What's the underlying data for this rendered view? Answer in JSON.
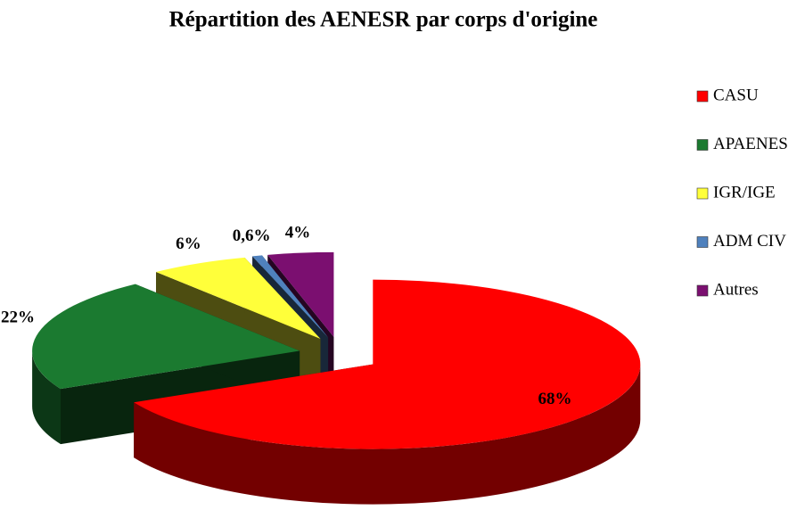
{
  "chart_data": {
    "type": "pie",
    "title": "Répartition des AENESR par corps d'origine",
    "categories": [
      "CASU",
      "APAENES",
      "IGR/IGE",
      "ADM CIV",
      "Autres"
    ],
    "values": [
      68,
      22,
      6,
      0.6,
      4
    ],
    "value_labels": [
      "68%",
      "22%",
      "6%",
      "0,6%",
      "4%"
    ],
    "colors": [
      "#ff0000",
      "#1b7a30",
      "#ffff3a",
      "#4f81bd",
      "#7b0f70"
    ],
    "legend": "right"
  }
}
